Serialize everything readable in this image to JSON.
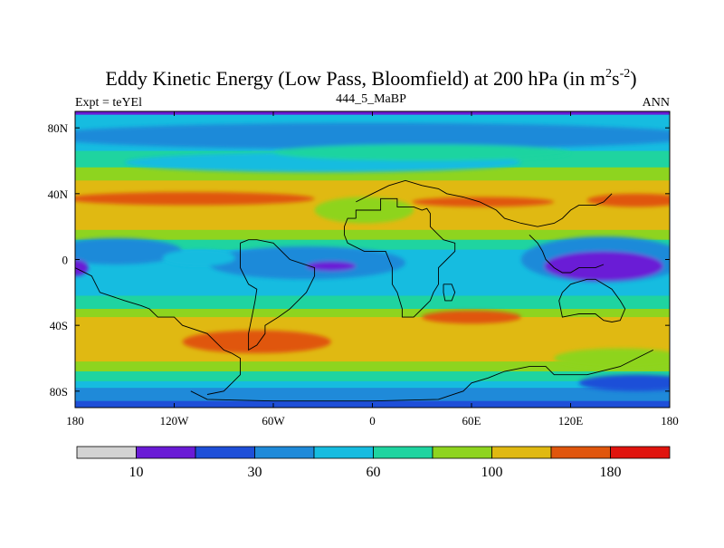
{
  "chart_data": {
    "type": "contour-map",
    "title_main": "Eddy Kinetic Energy (Low Pass, Bloomfield) at 200 hPa (in m",
    "title_exp1": "2",
    "title_mid": "s",
    "title_exp2": "-2",
    "title_end": ")",
    "subtitle": "444_5_MaBP",
    "left_label": "Expt = teYEl",
    "right_label": "ANN",
    "xlabel": "",
    "ylabel": "",
    "xlim": [
      -180,
      180
    ],
    "ylim": [
      -90,
      90
    ],
    "x_ticks": [
      {
        "value": -180,
        "label": "180"
      },
      {
        "value": -120,
        "label": "120W"
      },
      {
        "value": -60,
        "label": "60W"
      },
      {
        "value": 0,
        "label": "0"
      },
      {
        "value": 60,
        "label": "60E"
      },
      {
        "value": 120,
        "label": "120E"
      },
      {
        "value": 180,
        "label": "180"
      }
    ],
    "y_ticks": [
      {
        "value": 80,
        "label": "80N"
      },
      {
        "value": 40,
        "label": "40N"
      },
      {
        "value": 0,
        "label": "0"
      },
      {
        "value": -40,
        "label": "40S"
      },
      {
        "value": -80,
        "label": "80S"
      }
    ],
    "contour_levels": [
      0,
      10,
      20,
      30,
      45,
      60,
      80,
      100,
      140,
      180,
      250
    ],
    "colorbar": {
      "colors": [
        "#d3d3d3",
        "#6a1bd6",
        "#1e4fd8",
        "#1f8ad9",
        "#16bce0",
        "#1fd4a0",
        "#8ed41f",
        "#e0b912",
        "#e0560d",
        "#e0140e"
      ],
      "tick_labels": [
        {
          "value": 10,
          "label": "10"
        },
        {
          "value": 30,
          "label": "30"
        },
        {
          "value": 60,
          "label": "60"
        },
        {
          "value": 100,
          "label": "100"
        },
        {
          "value": 180,
          "label": "180"
        }
      ]
    },
    "bands": [
      {
        "lat_top": 90,
        "lat_bottom": 88,
        "level": 1,
        "name": "north-pole-edge"
      },
      {
        "lat_top": 88,
        "lat_bottom": 66,
        "level": 4,
        "name": "arctic"
      },
      {
        "lat_top": 66,
        "lat_bottom": 56,
        "level": 5,
        "name": "subarctic"
      },
      {
        "lat_top": 56,
        "lat_bottom": 48,
        "level": 6,
        "name": "mid-north-1"
      },
      {
        "lat_top": 48,
        "lat_bottom": 18,
        "level": 7,
        "name": "north-storm-track"
      },
      {
        "lat_top": 18,
        "lat_bottom": 12,
        "level": 6,
        "name": "north-subtropics"
      },
      {
        "lat_top": 12,
        "lat_bottom": 6,
        "level": 5,
        "name": "north-tropics"
      },
      {
        "lat_top": 6,
        "lat_bottom": -22,
        "level": 4,
        "name": "tropics"
      },
      {
        "lat_top": -22,
        "lat_bottom": -30,
        "level": 5,
        "name": "south-tropics"
      },
      {
        "lat_top": -30,
        "lat_bottom": -35,
        "level": 6,
        "name": "south-subtropics"
      },
      {
        "lat_top": -35,
        "lat_bottom": -62,
        "level": 7,
        "name": "south-storm-track"
      },
      {
        "lat_top": -62,
        "lat_bottom": -68,
        "level": 6,
        "name": "south-midlat"
      },
      {
        "lat_top": -68,
        "lat_bottom": -74,
        "level": 5,
        "name": "south-high"
      },
      {
        "lat_top": -74,
        "lat_bottom": -78,
        "level": 4,
        "name": "southern-ocean"
      },
      {
        "lat_top": -78,
        "lat_bottom": -86,
        "level": 3,
        "name": "antarctic-coast"
      },
      {
        "lat_top": -86,
        "lat_bottom": -90,
        "level": 2,
        "name": "south-pole"
      }
    ],
    "blobs": [
      {
        "name": "polar-jet-blue",
        "lon": 0,
        "lat": 75,
        "rlon": 200,
        "rlat": 8,
        "level": 3
      },
      {
        "name": "north-cyan-1",
        "lon": -30,
        "lat": 59,
        "rlon": 120,
        "rlat": 6,
        "level": 4
      },
      {
        "name": "north-green-ridge",
        "lon": 30,
        "lat": 65,
        "rlon": 90,
        "rlat": 5,
        "level": 5
      },
      {
        "name": "north-max-west",
        "lon": -110,
        "lat": 37,
        "rlon": 75,
        "rlat": 4,
        "level": 8
      },
      {
        "name": "north-max-east",
        "lon": 67,
        "lat": 35,
        "rlon": 43,
        "rlat": 3,
        "level": 8
      },
      {
        "name": "north-max-dateline",
        "lon": 160,
        "lat": 36,
        "rlon": 30,
        "rlat": 4,
        "level": 8
      },
      {
        "name": "north-atlantic-yellow",
        "lon": -5,
        "lat": 30,
        "rlon": 30,
        "rlat": 8,
        "level": 6
      },
      {
        "name": "tropics-blue-east",
        "lon": 140,
        "lat": 0,
        "rlon": 50,
        "rlat": 14,
        "level": 3
      },
      {
        "name": "tropics-purple-east",
        "lon": 140,
        "lat": -4,
        "rlon": 36,
        "rlat": 9,
        "level": 1
      },
      {
        "name": "tropics-blue-mid",
        "lon": -40,
        "lat": -2,
        "rlon": 60,
        "rlat": 10,
        "level": 3
      },
      {
        "name": "tropics-purple-mid",
        "lon": -25,
        "lat": -4,
        "rlon": 15,
        "rlat": 3,
        "level": 1
      },
      {
        "name": "tropics-blue-west",
        "lon": -155,
        "lat": 5,
        "rlon": 40,
        "rlat": 8,
        "level": 3
      },
      {
        "name": "tropics-purple-west",
        "lon": -180,
        "lat": -5,
        "rlon": 8,
        "rlat": 5,
        "level": 1
      },
      {
        "name": "tropics-cyan-patch",
        "lon": -105,
        "lat": 1,
        "rlon": 22,
        "rlat": 5,
        "level": 4
      },
      {
        "name": "south-max-west",
        "lon": -70,
        "lat": -50,
        "rlon": 45,
        "rlat": 7,
        "level": 8
      },
      {
        "name": "south-max-mid",
        "lon": 60,
        "lat": -35,
        "rlon": 30,
        "rlat": 4,
        "level": 8
      },
      {
        "name": "south-yellow-east",
        "lon": 150,
        "lat": -60,
        "rlon": 40,
        "rlat": 6,
        "level": 6
      },
      {
        "name": "south-blue-east",
        "lon": 160,
        "lat": -75,
        "rlon": 35,
        "rlat": 5,
        "level": 2
      }
    ],
    "coastlines": [
      {
        "name": "africa-outline",
        "points": [
          [
            -10,
            25
          ],
          [
            -10,
            30
          ],
          [
            5,
            30
          ],
          [
            5,
            37
          ],
          [
            15,
            37
          ],
          [
            15,
            32
          ],
          [
            25,
            32
          ],
          [
            30,
            30
          ],
          [
            33,
            31
          ],
          [
            35,
            28
          ],
          [
            35,
            20
          ],
          [
            40,
            15
          ],
          [
            43,
            12
          ],
          [
            50,
            10
          ],
          [
            50,
            5
          ],
          [
            45,
            0
          ],
          [
            40,
            -5
          ],
          [
            40,
            -15
          ],
          [
            37,
            -20
          ],
          [
            35,
            -25
          ],
          [
            30,
            -30
          ],
          [
            25,
            -35
          ],
          [
            18,
            -35
          ],
          [
            18,
            -30
          ],
          [
            15,
            -20
          ],
          [
            12,
            -15
          ],
          [
            12,
            -5
          ],
          [
            10,
            0
          ],
          [
            8,
            5
          ],
          [
            -5,
            5
          ],
          [
            -15,
            10
          ],
          [
            -17,
            15
          ],
          [
            -17,
            20
          ],
          [
            -15,
            25
          ],
          [
            -10,
            25
          ]
        ]
      },
      {
        "name": "south-america-outline",
        "points": [
          [
            -80,
            10
          ],
          [
            -75,
            12
          ],
          [
            -70,
            12
          ],
          [
            -60,
            10
          ],
          [
            -50,
            0
          ],
          [
            -35,
            -5
          ],
          [
            -35,
            -10
          ],
          [
            -40,
            -20
          ],
          [
            -45,
            -25
          ],
          [
            -50,
            -30
          ],
          [
            -57,
            -35
          ],
          [
            -65,
            -40
          ],
          [
            -65,
            -45
          ],
          [
            -70,
            -52
          ],
          [
            -75,
            -55
          ],
          [
            -75,
            -45
          ],
          [
            -73,
            -35
          ],
          [
            -71,
            -25
          ],
          [
            -70,
            -18
          ],
          [
            -75,
            -15
          ],
          [
            -80,
            -5
          ],
          [
            -80,
            10
          ]
        ]
      },
      {
        "name": "north-america-edge",
        "points": [
          [
            -180,
            -5
          ],
          [
            -170,
            -10
          ],
          [
            -165,
            -20
          ],
          [
            -150,
            -25
          ],
          [
            -140,
            -28
          ],
          [
            -135,
            -30
          ],
          [
            -130,
            -35
          ],
          [
            -120,
            -35
          ],
          [
            -115,
            -40
          ],
          [
            -100,
            -45
          ],
          [
            -95,
            -50
          ],
          [
            -90,
            -55
          ],
          [
            -85,
            -57
          ],
          [
            -80,
            -60
          ],
          [
            -80,
            -70
          ],
          [
            -85,
            -75
          ],
          [
            -90,
            -80
          ],
          [
            -100,
            -82
          ]
        ]
      },
      {
        "name": "antarctica-edge",
        "points": [
          [
            -110,
            -80
          ],
          [
            -100,
            -85
          ],
          [
            -60,
            -86
          ],
          [
            0,
            -86
          ],
          [
            40,
            -85
          ],
          [
            55,
            -80
          ],
          [
            60,
            -75
          ],
          [
            70,
            -72
          ],
          [
            80,
            -68
          ],
          [
            95,
            -65
          ],
          [
            105,
            -65
          ],
          [
            110,
            -70
          ],
          [
            130,
            -70
          ],
          [
            150,
            -65
          ],
          [
            160,
            -60
          ],
          [
            170,
            -55
          ]
        ]
      },
      {
        "name": "eurasia-edge",
        "points": [
          [
            -10,
            35
          ],
          [
            0,
            40
          ],
          [
            10,
            45
          ],
          [
            20,
            48
          ],
          [
            30,
            45
          ],
          [
            40,
            43
          ],
          [
            45,
            40
          ],
          [
            55,
            38
          ],
          [
            65,
            35
          ],
          [
            75,
            30
          ],
          [
            80,
            25
          ],
          [
            90,
            22
          ],
          [
            100,
            20
          ],
          [
            110,
            22
          ],
          [
            115,
            25
          ],
          [
            120,
            30
          ],
          [
            125,
            33
          ],
          [
            135,
            33
          ],
          [
            140,
            35
          ],
          [
            145,
            40
          ]
        ]
      },
      {
        "name": "australia-outline",
        "points": [
          [
            115,
            -20
          ],
          [
            120,
            -15
          ],
          [
            130,
            -12
          ],
          [
            135,
            -12
          ],
          [
            140,
            -15
          ],
          [
            145,
            -18
          ],
          [
            150,
            -25
          ],
          [
            153,
            -30
          ],
          [
            150,
            -37
          ],
          [
            145,
            -38
          ],
          [
            140,
            -37
          ],
          [
            135,
            -33
          ],
          [
            125,
            -33
          ],
          [
            115,
            -35
          ],
          [
            113,
            -25
          ],
          [
            115,
            -20
          ]
        ]
      },
      {
        "name": "southeast-asia",
        "points": [
          [
            95,
            15
          ],
          [
            100,
            10
          ],
          [
            103,
            5
          ],
          [
            105,
            0
          ],
          [
            110,
            -5
          ],
          [
            115,
            -8
          ],
          [
            120,
            -8
          ],
          [
            125,
            -5
          ],
          [
            130,
            -5
          ],
          [
            135,
            -5
          ],
          [
            140,
            -3
          ]
        ]
      },
      {
        "name": "madagascar",
        "points": [
          [
            43,
            -15
          ],
          [
            48,
            -15
          ],
          [
            50,
            -20
          ],
          [
            48,
            -25
          ],
          [
            44,
            -25
          ],
          [
            43,
            -20
          ],
          [
            43,
            -15
          ]
        ]
      }
    ]
  }
}
